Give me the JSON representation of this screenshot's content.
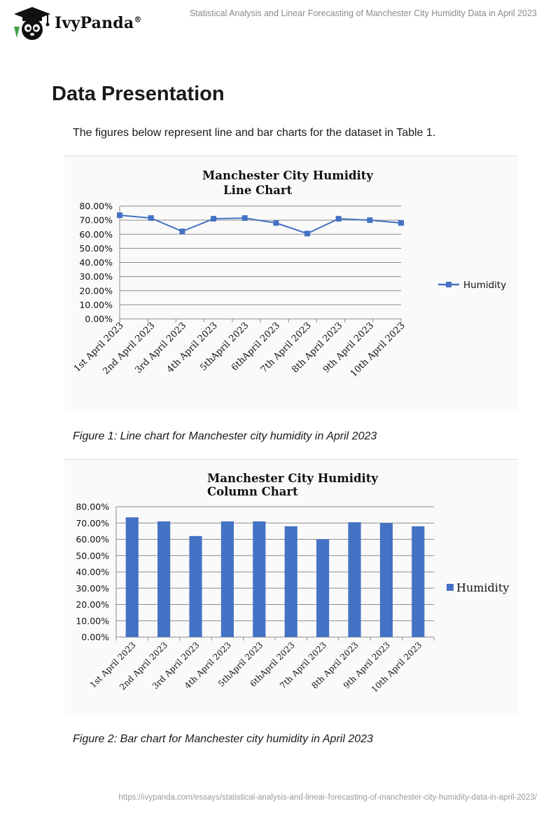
{
  "header": {
    "brand": "IvyPanda",
    "brand_mark": "®",
    "doc_title": "Statistical Analysis and Linear Forecasting of Manchester City Humidity Data in April 2023"
  },
  "section": {
    "heading": "Data Presentation",
    "intro": "The figures below represent line and bar charts for the dataset in Table 1."
  },
  "figures": {
    "figure1_caption": "Figure 1: Line chart for Manchester city humidity in April 2023",
    "figure2_caption": "Figure 2: Bar chart for Manchester city humidity in April 2023"
  },
  "footer": {
    "url": "https://ivypanda.com/essays/statistical-analysis-and-linear-forecasting-of-manchester-city-humidity-data-in-april-2023/"
  },
  "icons": {
    "logo": "graduate-panda-icon"
  },
  "colors": {
    "series": "#4472C4",
    "grid": "#8c8c8c",
    "logo_green": "#43a047"
  },
  "chart_data": [
    {
      "type": "line",
      "title_lines": [
        "Manchester City Humidity",
        "Line Chart"
      ],
      "categories": [
        "1st April 2023",
        "2nd April 2023",
        "3rd April 2023",
        "4th April 2023",
        "5thApril 2023",
        "6thApril 2023",
        "7th April 2023",
        "8th April 2023",
        "9th April 2023",
        "10th April 2023"
      ],
      "series": [
        {
          "name": "Humidity",
          "values": [
            73.5,
            71.5,
            62,
            71,
            71.5,
            68,
            60.5,
            71,
            70,
            68
          ]
        }
      ],
      "y_ticks": [
        "0.00%",
        "10.00%",
        "20.00%",
        "30.00%",
        "40.00%",
        "50.00%",
        "60.00%",
        "70.00%",
        "80.00%"
      ],
      "ylim": [
        0,
        80
      ],
      "grid": true,
      "legend": "right"
    },
    {
      "type": "bar",
      "title_lines": [
        "Manchester City Humidity",
        "Column Chart"
      ],
      "categories": [
        "1st April 2023",
        "2nd April 2023",
        "3rd April 2023",
        "4th April 2023",
        "5thApril 2023",
        "6thApril 2023",
        "7th April 2023",
        "8th April 2023",
        "9th April 2023",
        "10th April 2023"
      ],
      "series": [
        {
          "name": "Humidity",
          "values": [
            73.5,
            71,
            62,
            71,
            71,
            68,
            60,
            70.5,
            70,
            68
          ]
        }
      ],
      "y_ticks": [
        "0.00%",
        "10.00%",
        "20.00%",
        "30.00%",
        "40.00%",
        "50.00%",
        "60.00%",
        "70.00%",
        "80.00%"
      ],
      "ylim": [
        0,
        80
      ],
      "grid": true,
      "legend": "right"
    }
  ]
}
